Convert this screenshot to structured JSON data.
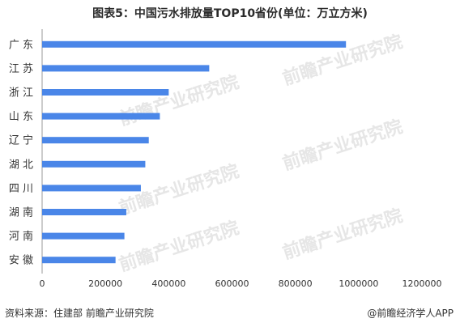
{
  "title": "图表5：中国污水排放量TOP10省份(单位：万立方米)",
  "footer": {
    "source": "资料来源：住建部 前瞻产业研究院",
    "brand": "@前瞻经济学人APP"
  },
  "watermark": "前瞻产业研究院",
  "colors": {
    "bar": "#4a86e8",
    "axis": "#999999",
    "grid": "#d9d9d9"
  },
  "chart_data": {
    "type": "bar",
    "orientation": "horizontal",
    "categories": [
      "广  东",
      "江  苏",
      "浙  江",
      "山  东",
      "辽  宁",
      "湖  北",
      "四  川",
      "湖  南",
      "河  南",
      "安  徽"
    ],
    "values": [
      960000,
      528000,
      400000,
      372000,
      337000,
      326000,
      312000,
      266000,
      260000,
      232000
    ],
    "xlim": [
      0,
      1200000
    ],
    "xticks": [
      "0",
      "200000",
      "400000",
      "600000",
      "800000",
      "1000000",
      "1200000"
    ],
    "xlabel": "",
    "ylabel": ""
  }
}
